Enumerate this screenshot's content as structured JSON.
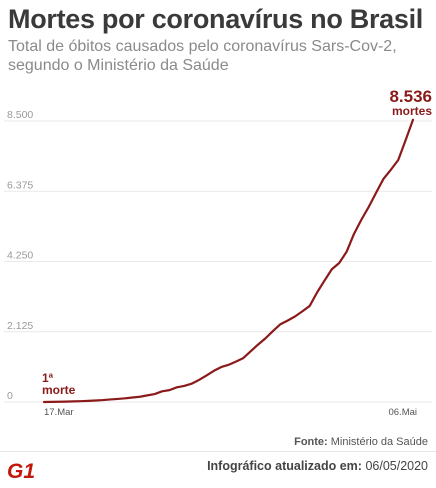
{
  "title": "Mortes por coronavírus no Brasil",
  "subtitle": "Total de óbitos causados pelo coronavírus Sars-Cov-2, segundo o Ministério da Saúde",
  "source": {
    "label": "Fonte:",
    "value": "Ministério da Saúde"
  },
  "updated": {
    "label": "Infográfico atualizado em:",
    "value": "06/05/2020"
  },
  "logo": "G1",
  "colors": {
    "line": "#8b1a1a",
    "grid": "#e9e9e9",
    "tick": "#9a9a9a",
    "text": "#3a3a3a"
  },
  "chart_data": {
    "type": "line",
    "title": "Mortes por coronavírus no Brasil",
    "xlabel": "",
    "ylabel": "",
    "x_ticks": [
      "17.Mar",
      "06.Mai"
    ],
    "y_ticks": [
      "0",
      "2.125",
      "4.250",
      "6.375",
      "8.500"
    ],
    "ylim": [
      0,
      8500
    ],
    "grid": "horizontal",
    "series": [
      {
        "x": [
          "17.Mar",
          "18.Mar",
          "19.Mar",
          "20.Mar",
          "21.Mar",
          "22.Mar",
          "23.Mar",
          "24.Mar",
          "25.Mar",
          "26.Mar",
          "27.Mar",
          "28.Mar",
          "29.Mar",
          "30.Mar",
          "31.Mar",
          "01.Abr",
          "02.Abr",
          "03.Abr",
          "04.Abr",
          "05.Abr",
          "06.Abr",
          "07.Abr",
          "08.Abr",
          "09.Abr",
          "10.Abr",
          "11.Abr",
          "12.Abr",
          "13.Abr",
          "14.Abr",
          "15.Abr",
          "16.Abr",
          "17.Abr",
          "18.Abr",
          "19.Abr",
          "20.Abr",
          "21.Abr",
          "22.Abr",
          "23.Abr",
          "24.Abr",
          "25.Abr",
          "26.Abr",
          "27.Abr",
          "28.Abr",
          "29.Abr",
          "30.Abr",
          "01.Mai",
          "02.Mai",
          "03.Mai",
          "04.Mai",
          "05.Mai",
          "06.Mai"
        ],
        "values": [
          1,
          4,
          7,
          11,
          18,
          25,
          34,
          46,
          59,
          77,
          92,
          111,
          136,
          159,
          201,
          240,
          324,
          359,
          445,
          486,
          553,
          667,
          800,
          941,
          1056,
          1124,
          1223,
          1328,
          1532,
          1736,
          1924,
          2141,
          2347,
          2462,
          2587,
          2741,
          2906,
          3313,
          3670,
          4016,
          4205,
          4543,
          5083,
          5513,
          5901,
          6329,
          6750,
          7025,
          7321,
          7921,
          8536
        ]
      }
    ],
    "annotations": [
      {
        "label": "1ª morte",
        "x": "17.Mar",
        "value": 1
      },
      {
        "label": "8.536",
        "sublabel": "mortes",
        "x": "06.Mai",
        "value": 8536
      }
    ]
  }
}
